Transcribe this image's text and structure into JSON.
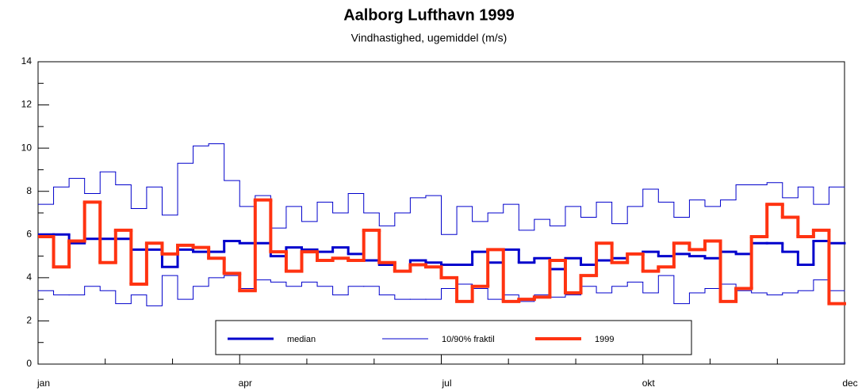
{
  "chart_data": {
    "type": "step",
    "title": "Aalborg Lufthavn 1999",
    "subtitle": "Vindhastighed, ugemiddel (m/s)",
    "xlim": [
      0,
      52
    ],
    "xticks": [
      {
        "value": 0,
        "label": "jan"
      },
      {
        "value": 13,
        "label": "apr"
      },
      {
        "value": 26,
        "label": "jul"
      },
      {
        "value": 39,
        "label": "okt"
      },
      {
        "value": 52,
        "label": "dec"
      }
    ],
    "xminorticks": [
      4.33,
      8.67,
      17.33,
      21.67,
      30.33,
      34.67,
      43.33,
      47.67
    ],
    "ylim": [
      0,
      14
    ],
    "yticks": [
      0,
      2,
      4,
      6,
      8,
      10,
      12,
      14
    ],
    "yminorticks": [
      1,
      3,
      5,
      7,
      9,
      11,
      13
    ],
    "series": [
      {
        "name": "median",
        "color": "#0000cc",
        "width": 3,
        "values": [
          6.0,
          6.0,
          5.6,
          5.8,
          5.8,
          5.8,
          5.3,
          5.3,
          4.5,
          5.3,
          5.2,
          5.2,
          5.7,
          5.6,
          5.6,
          5.0,
          5.4,
          5.3,
          5.2,
          5.4,
          5.1,
          4.8,
          4.6,
          4.3,
          4.8,
          4.7,
          4.6,
          4.6,
          5.2,
          4.7,
          5.3,
          4.7,
          4.9,
          4.4,
          4.9,
          4.6,
          4.8,
          4.9,
          5.1,
          5.2,
          5.0,
          5.1,
          5.0,
          4.9,
          5.2,
          5.1,
          5.6,
          5.6,
          5.2,
          4.6,
          5.7,
          5.6
        ]
      },
      {
        "name": "10/90% fraktil",
        "color": "#0000cc",
        "width": 1,
        "values": [
          7.4,
          8.2,
          8.6,
          7.9,
          8.9,
          8.3,
          7.2,
          8.2,
          6.9,
          9.3,
          10.1,
          10.2,
          8.5,
          7.3,
          7.8,
          6.3,
          7.3,
          6.6,
          7.5,
          7.0,
          7.9,
          7.0,
          6.4,
          7.0,
          7.7,
          7.8,
          6.0,
          7.3,
          6.6,
          7.0,
          7.4,
          6.2,
          6.7,
          6.4,
          7.3,
          6.8,
          7.5,
          6.5,
          7.3,
          8.1,
          7.5,
          6.8,
          7.6,
          7.3,
          7.6,
          8.3,
          8.3,
          8.4,
          7.7,
          8.2,
          7.4,
          8.2
        ],
        "lower_values": [
          3.4,
          3.2,
          3.2,
          3.6,
          3.4,
          2.8,
          3.2,
          2.7,
          4.1,
          3.0,
          3.6,
          4.0,
          4.1,
          3.5,
          3.9,
          3.8,
          3.6,
          3.8,
          3.6,
          3.2,
          3.6,
          3.6,
          3.2,
          3.0,
          3.0,
          3.0,
          3.5,
          3.7,
          3.5,
          3.0,
          3.2,
          2.9,
          3.2,
          3.1,
          3.2,
          3.6,
          3.3,
          3.6,
          3.8,
          3.3,
          4.1,
          2.8,
          3.3,
          3.5,
          3.7,
          3.4,
          3.3,
          3.2,
          3.3,
          3.4,
          3.9,
          3.4
        ]
      },
      {
        "name": "1999",
        "color": "#ff3311",
        "width": 4,
        "values": [
          5.9,
          4.5,
          5.7,
          7.5,
          4.7,
          6.2,
          3.7,
          5.6,
          5.1,
          5.5,
          5.4,
          4.9,
          4.2,
          3.4,
          7.6,
          5.2,
          4.3,
          5.2,
          4.8,
          4.9,
          4.8,
          6.2,
          4.7,
          4.3,
          4.6,
          4.5,
          4.0,
          2.9,
          3.6,
          5.3,
          2.9,
          3.0,
          3.1,
          4.8,
          3.3,
          4.1,
          5.6,
          4.7,
          5.1,
          4.3,
          4.5,
          5.6,
          5.3,
          5.7,
          2.9,
          3.5,
          5.9,
          7.4,
          6.8,
          5.9,
          6.2,
          2.8
        ]
      }
    ]
  }
}
